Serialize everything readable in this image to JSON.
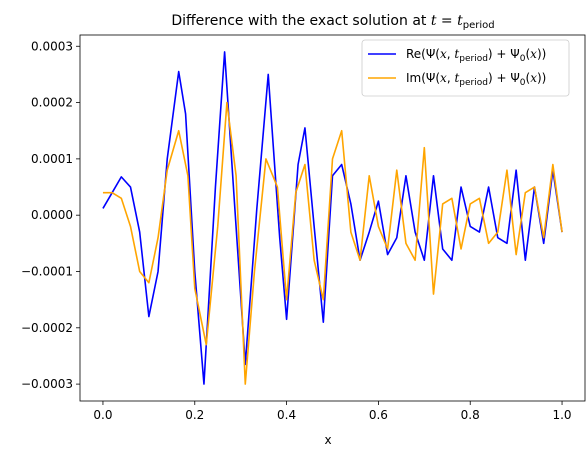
{
  "chart_data": {
    "type": "line",
    "title": {
      "prefix": "Difference with the exact solution at ",
      "math_t": "t",
      "equals": " = ",
      "math_t2": "t",
      "subscript": "period"
    },
    "xlabel": "x",
    "ylabel": "",
    "xlim": [
      -0.05,
      1.05
    ],
    "ylim": [
      -0.00033,
      0.00032
    ],
    "x_ticks": [
      {
        "value": 0.0,
        "label": "0.0"
      },
      {
        "value": 0.2,
        "label": "0.2"
      },
      {
        "value": 0.4,
        "label": "0.4"
      },
      {
        "value": 0.6,
        "label": "0.6"
      },
      {
        "value": 0.8,
        "label": "0.8"
      },
      {
        "value": 1.0,
        "label": "1.0"
      }
    ],
    "y_ticks": [
      {
        "value": -0.0003,
        "label": "−0.0003"
      },
      {
        "value": -0.0002,
        "label": "−0.0002"
      },
      {
        "value": -0.0001,
        "label": "−0.0001"
      },
      {
        "value": 0.0,
        "label": "0.0000"
      },
      {
        "value": 0.0001,
        "label": "0.0001"
      },
      {
        "value": 0.0002,
        "label": "0.0002"
      },
      {
        "value": 0.0003,
        "label": "0.0003"
      }
    ],
    "grid": false,
    "legend_position": "top-right",
    "series": [
      {
        "name": "Re(Ψ(x, t_period) + Ψ0(x))",
        "legend": {
          "pre": "Re(Ψ(",
          "x": "x",
          "comma": ", ",
          "t": "t",
          "sub": "period",
          "mid": ") + Ψ",
          "zero": "0",
          "open": "(",
          "x2": "x",
          "close": "))"
        },
        "color": "#0000ff",
        "x": [
          0.0,
          0.02,
          0.04,
          0.06,
          0.08,
          0.1,
          0.12,
          0.14,
          0.165,
          0.18,
          0.2,
          0.22,
          0.245,
          0.265,
          0.285,
          0.31,
          0.335,
          0.36,
          0.385,
          0.4,
          0.425,
          0.44,
          0.46,
          0.48,
          0.5,
          0.52,
          0.54,
          0.56,
          0.58,
          0.6,
          0.62,
          0.64,
          0.66,
          0.68,
          0.7,
          0.72,
          0.74,
          0.76,
          0.78,
          0.8,
          0.82,
          0.84,
          0.86,
          0.88,
          0.9,
          0.92,
          0.94,
          0.96,
          0.98,
          1.0
        ],
        "y": [
          1.2e-05,
          4e-05,
          6.8e-05,
          5e-05,
          -3e-05,
          -0.00018,
          -0.0001,
          0.0001,
          0.000255,
          0.00018,
          -0.0001,
          -0.0003,
          5e-05,
          0.00029,
          4e-05,
          -0.000265,
          1e-05,
          0.00025,
          -4e-05,
          -0.000185,
          9e-05,
          0.000155,
          -2e-05,
          -0.00019,
          7e-05,
          9e-05,
          2e-05,
          -8e-05,
          -3e-05,
          2.5e-05,
          -7e-05,
          -4e-05,
          7e-05,
          -3e-05,
          -8e-05,
          7e-05,
          -6e-05,
          -8e-05,
          5e-05,
          -2e-05,
          -3e-05,
          5e-05,
          -4e-05,
          -5e-05,
          8e-05,
          -8e-05,
          5e-05,
          -5e-05,
          8e-05,
          -3e-05
        ]
      },
      {
        "name": "Im(Ψ(x, t_period) + Ψ0(x))",
        "legend": {
          "pre": "Im(Ψ(",
          "x": "x",
          "comma": ", ",
          "t": "t",
          "sub": "period",
          "mid": ") + Ψ",
          "zero": "0",
          "open": "(",
          "x2": "x",
          "close": "))"
        },
        "color": "#ffa500",
        "x": [
          0.0,
          0.02,
          0.04,
          0.06,
          0.08,
          0.1,
          0.12,
          0.14,
          0.165,
          0.185,
          0.2,
          0.225,
          0.25,
          0.27,
          0.29,
          0.31,
          0.33,
          0.355,
          0.38,
          0.4,
          0.42,
          0.44,
          0.46,
          0.48,
          0.5,
          0.52,
          0.54,
          0.56,
          0.58,
          0.6,
          0.62,
          0.64,
          0.66,
          0.68,
          0.7,
          0.72,
          0.74,
          0.76,
          0.78,
          0.8,
          0.82,
          0.84,
          0.86,
          0.88,
          0.9,
          0.92,
          0.94,
          0.96,
          0.98,
          1.0
        ],
        "y": [
          4e-05,
          4e-05,
          3e-05,
          -2e-05,
          -0.0001,
          -0.00012,
          -4e-05,
          8e-05,
          0.00015,
          7e-05,
          -0.00013,
          -0.00023,
          -2e-05,
          0.0002,
          7e-05,
          -0.0003,
          -0.0001,
          0.0001,
          5e-05,
          -0.00015,
          4e-05,
          9e-05,
          -8e-05,
          -0.00015,
          0.0001,
          0.00015,
          -3e-05,
          -8e-05,
          7e-05,
          -2e-05,
          -6e-05,
          8e-05,
          -5e-05,
          -8e-05,
          0.00012,
          -0.00014,
          2e-05,
          3e-05,
          -6e-05,
          2e-05,
          3e-05,
          -5e-05,
          -3e-05,
          8e-05,
          -7e-05,
          4e-05,
          5e-05,
          -4e-05,
          9e-05,
          -3e-05
        ]
      }
    ]
  }
}
